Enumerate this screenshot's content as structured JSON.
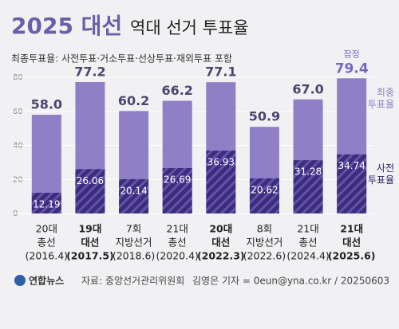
{
  "chart_data": {
    "type": "bar",
    "title": "2025 대선",
    "subtitle_title": "역대 선거 투표율",
    "subtitle": "최종투표율: 사전투표·거소투표·선상투표·재외투표 포함",
    "categories": [
      [
        "20대",
        "총선",
        "(2016.4)"
      ],
      [
        "19대",
        "대선",
        "(2017.5)"
      ],
      [
        "7회",
        "지방선거",
        "(2018.6)"
      ],
      [
        "21대",
        "총선",
        "(2020.4)"
      ],
      [
        "20대",
        "대선",
        "(2022.3)"
      ],
      [
        "8회",
        "지방선거",
        "(2022.6)"
      ],
      [
        "21대",
        "총선",
        "(2024.4)"
      ],
      [
        "21대",
        "대선",
        "(2025.6)"
      ]
    ],
    "highlight": [
      1,
      4,
      7
    ],
    "series": [
      {
        "name": "최종 투표율",
        "color": "#8f7fc6",
        "values": [
          58.0,
          77.2,
          60.2,
          66.2,
          77.1,
          50.9,
          67.0,
          79.4
        ],
        "value_labels": [
          "58.0",
          "77.2",
          "60.2",
          "66.2",
          "77.1",
          "50.9",
          "67.0",
          "79.4"
        ]
      },
      {
        "name": "사전 투표율",
        "color": "#3b2d7e",
        "values": [
          12.19,
          26.06,
          20.14,
          26.69,
          36.93,
          20.62,
          31.28,
          34.74
        ]
      }
    ],
    "annotation": {
      "text": "잠정",
      "index": 7
    },
    "ylim": [
      0,
      80
    ],
    "yticks": [
      0,
      20,
      40,
      60,
      80
    ],
    "grid": true,
    "source": "자료: 중앙선거관리위원회",
    "logo": "연합뉴스",
    "credit": "김영은 기자 = 0eun@yna.co.kr / 20250603"
  }
}
